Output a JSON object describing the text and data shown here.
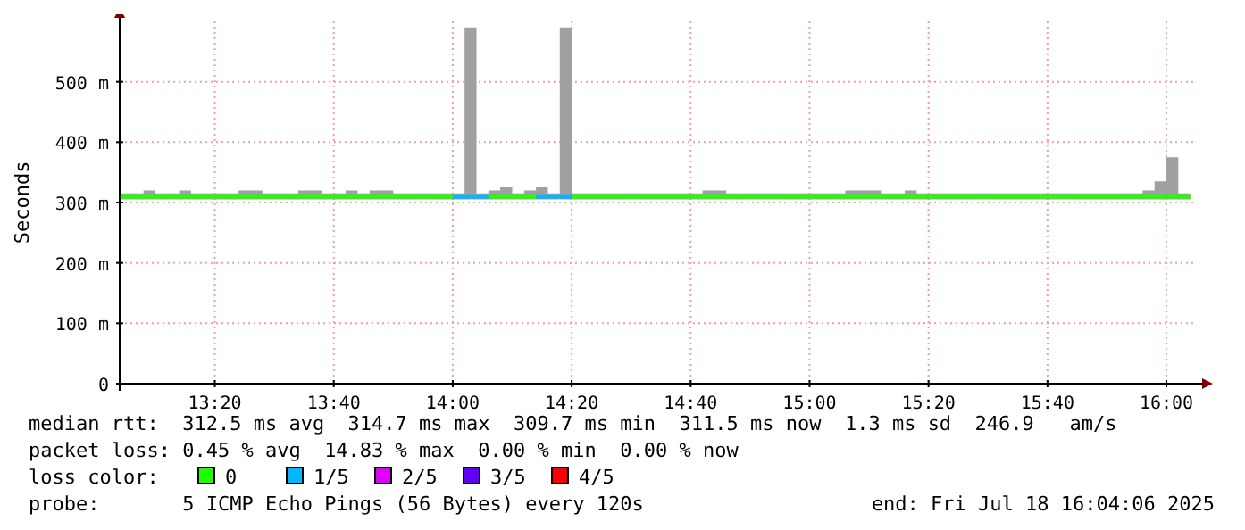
{
  "chart_data": {
    "type": "step",
    "ylabel": "Seconds",
    "legend_title": "loss color:",
    "legend": "bottom",
    "grid": true,
    "xlim": [
      13.0667,
      16.08
    ],
    "xticks": [
      {
        "value": 13.3333,
        "label": "13:20"
      },
      {
        "value": 13.6667,
        "label": "13:40"
      },
      {
        "value": 14,
        "label": "14:00"
      },
      {
        "value": 14.3333,
        "label": "14:20"
      },
      {
        "value": 14.6667,
        "label": "14:40"
      },
      {
        "value": 15,
        "label": "15:00"
      },
      {
        "value": 15.3333,
        "label": "15:20"
      },
      {
        "value": 15.6667,
        "label": "15:40"
      },
      {
        "value": 16,
        "label": "16:00"
      }
    ],
    "ylim": [
      0,
      600
    ],
    "yticks": [
      0,
      {
        "value": 100,
        "label": "100 m"
      },
      {
        "value": 200,
        "label": "200 m"
      },
      {
        "value": 300,
        "label": "300 m"
      },
      {
        "value": 400,
        "label": "400 m"
      },
      {
        "value": 500,
        "label": "500 m"
      }
    ],
    "x": [
      13.0667,
      13.1,
      13.1333,
      13.1667,
      13.2,
      13.2333,
      13.2667,
      13.3,
      13.3333,
      13.3667,
      13.4,
      13.4333,
      13.4667,
      13.5,
      13.5333,
      13.5667,
      13.6,
      13.6333,
      13.6667,
      13.7,
      13.7333,
      13.7667,
      13.8,
      13.8333,
      13.8667,
      13.9,
      13.9333,
      13.9667,
      14,
      14.0333,
      14.0667,
      14.1,
      14.1333,
      14.1667,
      14.2,
      14.2333,
      14.2667,
      14.3,
      14.3333,
      14.3667,
      14.4,
      14.4333,
      14.4667,
      14.5,
      14.5333,
      14.5667,
      14.6,
      14.6333,
      14.6667,
      14.7,
      14.7333,
      14.7667,
      14.8,
      14.8333,
      14.8667,
      14.9,
      14.9333,
      14.9667,
      15,
      15.0333,
      15.0667,
      15.1,
      15.1333,
      15.1667,
      15.2,
      15.2333,
      15.2667,
      15.3,
      15.3333,
      15.3667,
      15.4,
      15.4333,
      15.4667,
      15.5,
      15.5333,
      15.5667,
      15.6,
      15.6333,
      15.6667,
      15.7,
      15.7333,
      15.7667,
      15.8,
      15.8333,
      15.8667,
      15.9,
      15.9333,
      15.9667,
      16,
      16.0333,
      16.0667
    ],
    "series": [
      {
        "name": "0",
        "color": "#20ff00",
        "values": [
          310,
          310,
          310,
          310,
          310,
          310,
          310,
          310,
          310,
          310,
          310,
          310,
          310,
          310,
          310,
          310,
          310,
          310,
          310,
          310,
          310,
          310,
          310,
          310,
          310,
          310,
          310,
          310,
          310,
          null,
          null,
          310,
          310,
          310,
          310,
          310,
          null,
          null,
          310,
          310,
          310,
          310,
          310,
          310,
          310,
          310,
          310,
          310,
          310,
          310,
          310,
          310,
          310,
          310,
          310,
          310,
          310,
          310,
          310,
          310,
          310,
          310,
          310,
          310,
          310,
          310,
          310,
          310,
          310,
          310,
          310,
          310,
          310,
          310,
          310,
          310,
          310,
          310,
          310,
          310,
          310,
          310,
          310,
          310,
          310,
          310,
          310,
          310,
          310,
          310,
          310
        ],
        "lower": [
          305,
          305,
          305,
          305,
          305,
          305,
          305,
          305,
          305,
          305,
          305,
          305,
          305,
          305,
          305,
          305,
          305,
          305,
          305,
          305,
          305,
          305,
          305,
          305,
          305,
          305,
          305,
          305,
          305,
          305,
          305,
          305,
          305,
          305,
          305,
          305,
          305,
          305,
          305,
          305,
          305,
          305,
          305,
          305,
          305,
          305,
          305,
          305,
          305,
          305,
          305,
          305,
          305,
          305,
          305,
          305,
          305,
          305,
          305,
          305,
          305,
          305,
          305,
          305,
          305,
          305,
          305,
          305,
          305,
          305,
          305,
          305,
          305,
          305,
          305,
          305,
          305,
          305,
          305,
          305,
          305,
          305,
          305,
          305,
          305,
          305,
          305,
          305,
          305,
          305,
          305
        ],
        "upper": [
          315,
          315,
          320,
          315,
          315,
          320,
          315,
          315,
          315,
          315,
          320,
          320,
          315,
          315,
          315,
          320,
          320,
          315,
          315,
          320,
          315,
          320,
          320,
          315,
          315,
          315,
          315,
          315,
          315,
          590,
          315,
          320,
          325,
          315,
          320,
          325,
          315,
          590,
          315,
          315,
          315,
          315,
          315,
          315,
          315,
          315,
          315,
          315,
          315,
          320,
          320,
          315,
          315,
          315,
          315,
          315,
          315,
          315,
          315,
          315,
          315,
          320,
          320,
          320,
          315,
          315,
          320,
          315,
          315,
          315,
          315,
          315,
          315,
          315,
          315,
          315,
          315,
          315,
          315,
          315,
          315,
          315,
          315,
          315,
          315,
          315,
          320,
          335,
          375,
          315,
          315
        ]
      },
      {
        "name": "1/5",
        "color": "#00b8ff",
        "values": [
          null,
          null,
          null,
          null,
          null,
          null,
          null,
          null,
          null,
          null,
          null,
          null,
          null,
          null,
          null,
          null,
          null,
          null,
          null,
          null,
          null,
          null,
          null,
          null,
          null,
          null,
          null,
          null,
          310,
          310,
          310,
          310,
          null,
          null,
          null,
          310,
          310,
          310,
          310,
          null,
          null,
          null,
          null,
          null,
          null,
          null,
          null,
          null,
          null,
          null,
          null,
          null,
          null,
          null,
          null,
          null,
          null,
          null,
          null,
          null,
          null,
          null,
          null,
          null,
          null,
          null,
          null,
          null,
          null,
          null,
          null,
          null,
          null,
          null,
          null,
          null,
          null,
          null,
          null,
          null,
          null,
          null,
          null,
          null,
          null,
          null,
          null,
          null,
          null,
          null,
          null
        ]
      },
      {
        "name": "2/5",
        "color": "#e000ff",
        "values": [
          null,
          null,
          null,
          null,
          null,
          null,
          null,
          null,
          null,
          null,
          null,
          null,
          null,
          null,
          null,
          null,
          null,
          null,
          null,
          null,
          null,
          null,
          null,
          null,
          null,
          null,
          null,
          null,
          null,
          null,
          null,
          null,
          null,
          null,
          null,
          null,
          null,
          null,
          null,
          null,
          null,
          null,
          null,
          null,
          null,
          null,
          null,
          null,
          null,
          null,
          null,
          null,
          null,
          null,
          null,
          null,
          null,
          null,
          null,
          null,
          null,
          null,
          null,
          null,
          null,
          null,
          null,
          null,
          null,
          null,
          null,
          null,
          null,
          null,
          null,
          null,
          null,
          null,
          null,
          null,
          null,
          null,
          null,
          null,
          null,
          null,
          null,
          null,
          null,
          null,
          null
        ]
      },
      {
        "name": "3/5",
        "color": "#6000ff",
        "values": [
          null,
          null,
          null,
          null,
          null,
          null,
          null,
          null,
          null,
          null,
          null,
          null,
          null,
          null,
          null,
          null,
          null,
          null,
          null,
          null,
          null,
          null,
          null,
          null,
          null,
          null,
          null,
          null,
          null,
          null,
          null,
          null,
          null,
          null,
          null,
          null,
          null,
          null,
          null,
          null,
          null,
          null,
          null,
          null,
          null,
          null,
          null,
          null,
          null,
          null,
          null,
          null,
          null,
          null,
          null,
          null,
          null,
          null,
          null,
          null,
          null,
          null,
          null,
          null,
          null,
          null,
          null,
          null,
          null,
          null,
          null,
          null,
          null,
          null,
          null,
          null,
          null,
          null,
          null,
          null,
          null,
          null,
          null,
          null,
          null,
          null,
          null,
          null,
          null,
          null,
          null
        ]
      },
      {
        "name": "4/5",
        "color": "#ff0000",
        "values": [
          null,
          null,
          null,
          null,
          null,
          null,
          null,
          null,
          null,
          null,
          null,
          null,
          null,
          null,
          null,
          null,
          null,
          null,
          null,
          null,
          null,
          null,
          null,
          null,
          null,
          null,
          null,
          null,
          null,
          null,
          null,
          null,
          null,
          null,
          null,
          null,
          null,
          null,
          null,
          null,
          null,
          null,
          null,
          null,
          null,
          null,
          null,
          null,
          null,
          null,
          null,
          null,
          null,
          null,
          null,
          null,
          null,
          null,
          null,
          null,
          null,
          null,
          null,
          null,
          null,
          null,
          null,
          null,
          null,
          null,
          null,
          null,
          null,
          null,
          null,
          null,
          null,
          null,
          null,
          null,
          null,
          null,
          null,
          null,
          null,
          null,
          null,
          null,
          null,
          null,
          null
        ]
      }
    ],
    "annotations": [
      "median rtt:  312.5 ms avg  314.7 ms max  309.7 ms min  311.5 ms now  1.3 ms sd  246.9   am/s",
      "packet loss: 0.45 % avg  14.83 % max  0.00 % min  0.00 % now",
      "probe:       5 ICMP Echo Pings (56 Bytes) every 120s",
      "end: Fri Jul 18 16:04:06 2025"
    ]
  }
}
